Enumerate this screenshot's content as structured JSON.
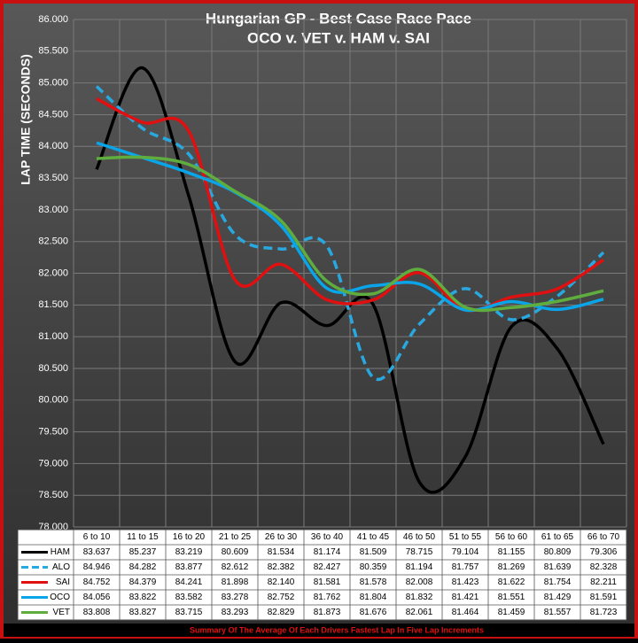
{
  "chart_data": {
    "type": "line",
    "title": "Hungarian GP - Best Case Race Pace",
    "subtitle": "OCO v. VET v. HAM v. SAI",
    "y_label": "LAP TIME (SECONDS)",
    "footer": "Summary Of The Average Of Each Drivers Fastest Lap In Five Lap Increments",
    "categories": [
      "6 to 10",
      "11 to 15",
      "16 to 20",
      "21 to 25",
      "26 to 30",
      "36 to 40",
      "41 to 45",
      "46 to 50",
      "51 to 55",
      "56 to 60",
      "61 to 65",
      "66 to 70"
    ],
    "ylim": [
      78,
      86
    ],
    "yticks": [
      {
        "value": 78,
        "label": "78.000"
      },
      {
        "value": 78.5,
        "label": "78.500"
      },
      {
        "value": 79,
        "label": "79.000"
      },
      {
        "value": 79.5,
        "label": "79.500"
      },
      {
        "value": 80,
        "label": "80.000"
      },
      {
        "value": 80.5,
        "label": "80.500"
      },
      {
        "value": 81,
        "label": "81.000"
      },
      {
        "value": 81.5,
        "label": "81.500"
      },
      {
        "value": 82,
        "label": "82.000"
      },
      {
        "value": 82.5,
        "label": "82.500"
      },
      {
        "value": 83,
        "label": "83.000"
      },
      {
        "value": 83.5,
        "label": "83.500"
      },
      {
        "value": 84,
        "label": "84.000"
      },
      {
        "value": 84.5,
        "label": "84.500"
      },
      {
        "value": 85,
        "label": "85.000"
      },
      {
        "value": 85.5,
        "label": "85.500"
      },
      {
        "value": 86,
        "label": "86.000"
      }
    ],
    "grid": true,
    "series": [
      {
        "name": "HAM",
        "color": "#000000",
        "dashed": false,
        "values": [
          83.637,
          85.237,
          83.219,
          80.609,
          81.534,
          81.174,
          81.509,
          78.715,
          79.104,
          81.155,
          80.809,
          79.306
        ],
        "value_labels": [
          "83.637",
          "85.237",
          "83.219",
          "80.609",
          "81.534",
          "81.174",
          "81.509",
          "78.715",
          "79.104",
          "81.155",
          "80.809",
          "79.306"
        ]
      },
      {
        "name": "ALO",
        "color": "#29a8e0",
        "dashed": true,
        "values": [
          84.946,
          84.282,
          83.877,
          82.612,
          82.382,
          82.427,
          80.359,
          81.194,
          81.757,
          81.269,
          81.639,
          82.328
        ],
        "value_labels": [
          "84.946",
          "84.282",
          "83.877",
          "82.612",
          "82.382",
          "82.427",
          "80.359",
          "81.194",
          "81.757",
          "81.269",
          "81.639",
          "82.328"
        ]
      },
      {
        "name": "SAI",
        "color": "#e01010",
        "dashed": false,
        "values": [
          84.752,
          84.379,
          84.241,
          81.898,
          82.14,
          81.581,
          81.578,
          82.008,
          81.423,
          81.622,
          81.754,
          82.211
        ],
        "value_labels": [
          "84.752",
          "84.379",
          "84.241",
          "81.898",
          "82.140",
          "81.581",
          "81.578",
          "82.008",
          "81.423",
          "81.622",
          "81.754",
          "82.211"
        ]
      },
      {
        "name": "OCO",
        "color": "#0aa4e8",
        "dashed": false,
        "values": [
          84.056,
          83.822,
          83.582,
          83.278,
          82.752,
          81.762,
          81.804,
          81.832,
          81.421,
          81.551,
          81.429,
          81.591
        ],
        "value_labels": [
          "84.056",
          "83.822",
          "83.582",
          "83.278",
          "82.752",
          "81.762",
          "81.804",
          "81.832",
          "81.421",
          "81.551",
          "81.429",
          "81.591"
        ]
      },
      {
        "name": "VET",
        "color": "#5fad3e",
        "dashed": false,
        "values": [
          83.808,
          83.827,
          83.715,
          83.293,
          82.829,
          81.873,
          81.676,
          82.061,
          81.464,
          81.459,
          81.557,
          81.723
        ],
        "value_labels": [
          "83.808",
          "83.827",
          "83.715",
          "83.293",
          "82.829",
          "81.873",
          "81.676",
          "82.061",
          "81.464",
          "81.459",
          "81.557",
          "81.723"
        ]
      }
    ]
  }
}
